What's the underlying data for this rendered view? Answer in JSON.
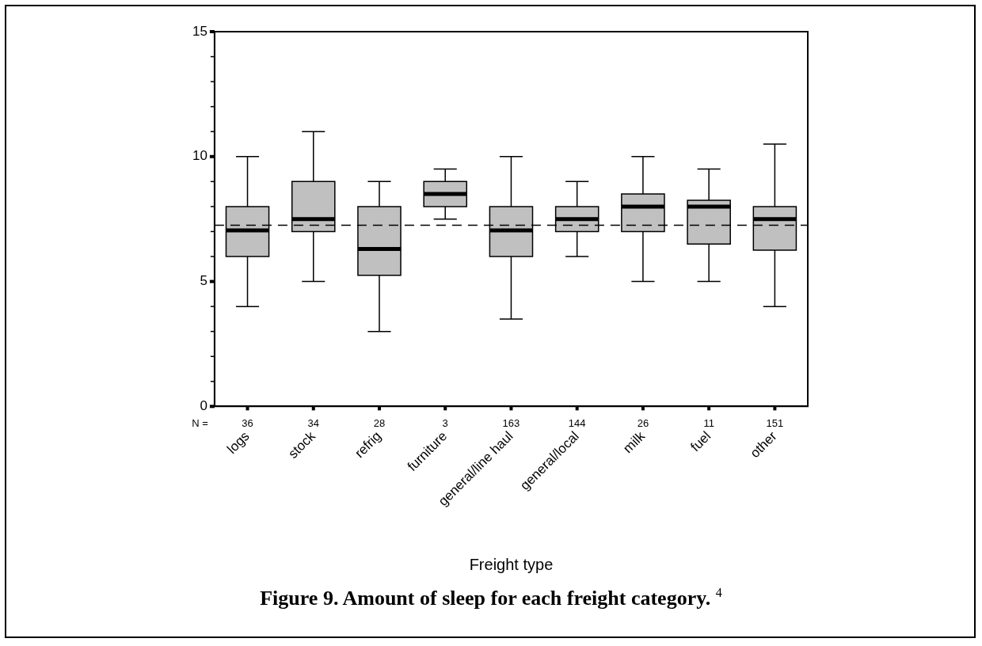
{
  "chart_data": {
    "type": "box",
    "title": "Figure 9.  Amount of sleep for each freight category. $^{4}$",
    "xlabel": "Freight type",
    "categories": [
      "logs",
      "stock",
      "refrig",
      "furniture",
      "general/line haul",
      "general/local",
      "milk",
      "fuel",
      "other"
    ],
    "boxes": [
      {
        "low": 4,
        "q1": 6,
        "median": 7.05,
        "q3": 8,
        "high": 10
      },
      {
        "low": 5,
        "q1": 7,
        "median": 7.5,
        "q3": 9,
        "high": 11
      },
      {
        "low": 3,
        "q1": 5.25,
        "median": 6.3,
        "q3": 8,
        "high": 9
      },
      {
        "low": 7.5,
        "q1": 8,
        "median": 8.5,
        "q3": 9,
        "high": 9.5
      },
      {
        "low": 3.5,
        "q1": 6,
        "median": 7.05,
        "q3": 8,
        "high": 10
      },
      {
        "low": 6,
        "q1": 7,
        "median": 7.5,
        "q3": 8,
        "high": 9
      },
      {
        "low": 5,
        "q1": 7,
        "median": 8,
        "q3": 8.5,
        "high": 10
      },
      {
        "low": 5,
        "q1": 6.5,
        "median": 8,
        "q3": 8.25,
        "high": 9.5
      },
      {
        "low": 4,
        "q1": 6.25,
        "median": 7.5,
        "q3": 8,
        "high": 10.5
      }
    ],
    "color": "#c0c0c0",
    "ylim": [
      0,
      15
    ],
    "yticks": [
      0,
      {
        "value": 1,
        "label": null
      },
      {
        "value": 2,
        "label": null
      },
      {
        "value": 3,
        "label": null
      },
      {
        "value": 4,
        "label": null
      },
      5,
      {
        "value": 6,
        "label": null
      },
      {
        "value": 7,
        "label": null
      },
      {
        "value": 8,
        "label": null
      },
      {
        "value": 9,
        "label": null
      },
      10,
      {
        "value": 11,
        "label": null
      },
      {
        "value": 12,
        "label": null
      },
      {
        "value": 13,
        "label": null
      },
      {
        "value": 14,
        "label": null
      },
      15
    ],
    "ref_lines": [
      {
        "axis": "y",
        "value": 7.25,
        "line_style": "dashed",
        "color": "#000000"
      }
    ],
    "annotations": [
      "N =",
      "36",
      "34",
      "28",
      "3",
      "163",
      "144",
      "26",
      "11",
      "151"
    ],
    "grid": false,
    "legend": false
  }
}
